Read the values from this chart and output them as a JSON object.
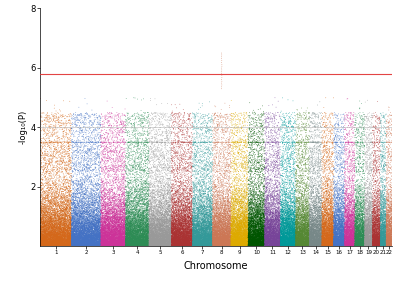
{
  "title": "",
  "xlabel": "Chromosome",
  "ylabel": "-log₁₀(P)",
  "ylim": [
    0,
    8
  ],
  "yticks": [
    2,
    4,
    6,
    8
  ],
  "significance_line": 5.8,
  "suggestive_line": 4.0,
  "chr_colors": [
    "#D4681A",
    "#4472C4",
    "#CC3399",
    "#2D8C55",
    "#999999",
    "#AA3333",
    "#339999",
    "#CC7755",
    "#DDAA00",
    "#005500",
    "#774499",
    "#009999",
    "#558833",
    "#778888",
    "#D4681A",
    "#4472C4",
    "#CC3399",
    "#2D8C55",
    "#999999",
    "#AA3333",
    "#339999",
    "#CC7755"
  ],
  "n_chromosomes": 22,
  "chr_sizes_relative": [
    8.0,
    7.5,
    6.3,
    6.0,
    5.7,
    5.4,
    5.1,
    4.7,
    4.4,
    4.2,
    4.0,
    3.9,
    3.5,
    3.2,
    3.0,
    2.8,
    2.6,
    2.5,
    2.0,
    2.0,
    1.5,
    1.5
  ],
  "genome_wide_sig": 5.8,
  "suggestive_sig": 4.0,
  "background_color": "#FFFFFF",
  "point_size": 0.3,
  "signal_chr_idx": 7,
  "signal_value": 6.5,
  "suggestive_chr_idx": 17,
  "suggestive_value": 4.2
}
